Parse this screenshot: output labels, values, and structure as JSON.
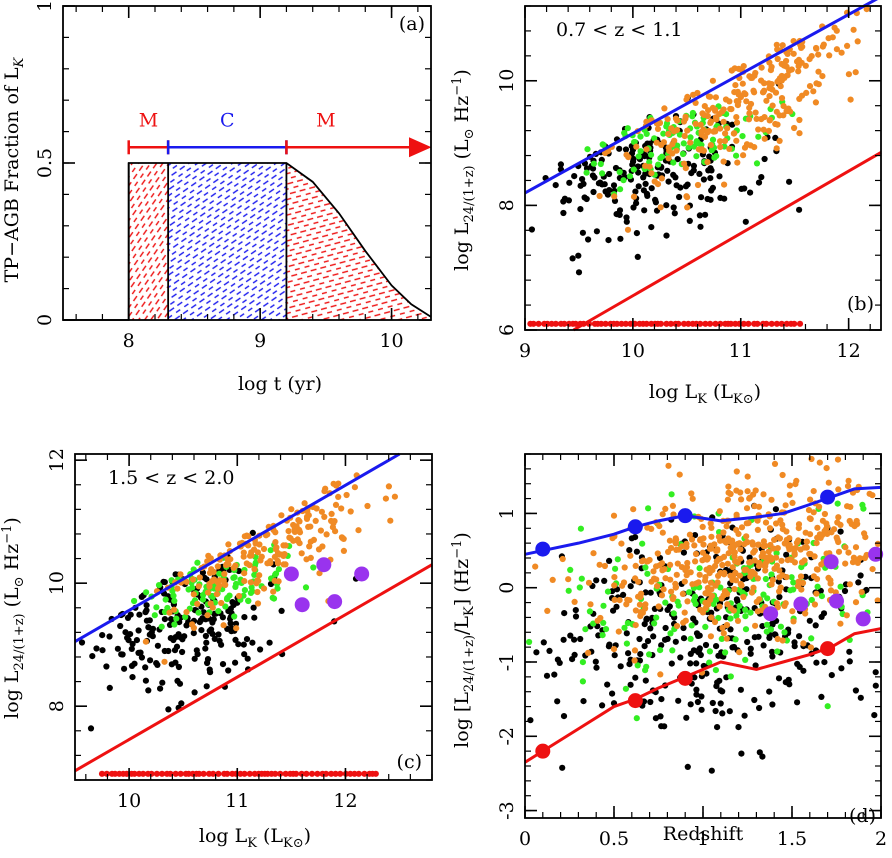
{
  "colors": {
    "axis": "#000000",
    "red": "#ee1111",
    "blue": "#1a1aee",
    "orange": "#f08a24",
    "green": "#33ee22",
    "black": "#000000",
    "purple": "#9933ee"
  },
  "chart_data": [
    {
      "id": "a",
      "type": "area",
      "panel_label": "(a)",
      "xlabel": "log t (yr)",
      "ylabel": "TP-AGB Fraction of L_K",
      "xlim": [
        7.5,
        10.3
      ],
      "ylim": [
        0,
        1
      ],
      "xticks": [
        "8",
        "9",
        "10"
      ],
      "xtick_values": [
        8,
        9,
        10
      ],
      "yticks": [
        "0",
        "0.5",
        "1"
      ],
      "ytick_values": [
        0,
        0.5,
        1
      ],
      "curve": {
        "x": [
          7.5,
          8.0,
          8.0,
          9.2,
          9.4,
          9.6,
          9.8,
          10.0,
          10.15,
          10.3
        ],
        "y": [
          0,
          0,
          0.5,
          0.5,
          0.44,
          0.34,
          0.22,
          0.11,
          0.05,
          0.01
        ]
      },
      "regions": [
        {
          "name": "M",
          "x_start": 8.0,
          "x_end": 8.3,
          "fill": "red-hatch"
        },
        {
          "name": "C",
          "x_start": 8.3,
          "x_end": 9.2,
          "fill": "blue-hatch"
        },
        {
          "name": "M",
          "x_start": 9.2,
          "x_end": 10.3,
          "fill": "red-hatch"
        }
      ],
      "bracket_labels": [
        "M",
        "C",
        "M"
      ]
    },
    {
      "id": "b",
      "type": "scatter",
      "panel_label": "(b)",
      "annotation": "0.7 < z < 1.1",
      "xlabel": "log L_K (L_K⊙)",
      "ylabel": "log L_24/(1+z) (L⊙ Hz^-1)",
      "xlim": [
        9,
        12.3
      ],
      "ylim": [
        6,
        11.2
      ],
      "xticks": [
        "9",
        "10",
        "11",
        "12"
      ],
      "xtick_values": [
        9,
        10,
        11,
        12
      ],
      "yticks": [
        "6",
        "8",
        "10"
      ],
      "ytick_values": [
        6,
        8,
        10
      ],
      "lines": [
        {
          "name": "upper",
          "color": "blue",
          "x": [
            9,
            12.3
          ],
          "y": [
            8.2,
            11.35
          ]
        },
        {
          "name": "lower",
          "color": "red",
          "x": [
            9.45,
            12.3
          ],
          "y": [
            6.0,
            8.85
          ]
        }
      ],
      "upper_limit_row": {
        "y": 6.1,
        "x_from": 9.05,
        "x_to": 11.55
      },
      "series": [
        {
          "name": "orange",
          "color": "orange",
          "center": [
            11.0,
            9.75
          ],
          "spread": [
            0.55,
            0.55
          ],
          "slope": 0.85,
          "count": 330,
          "seed": 11
        },
        {
          "name": "green",
          "color": "green",
          "center": [
            10.5,
            9.1
          ],
          "spread": [
            0.45,
            0.28
          ],
          "slope": 0.3,
          "count": 110,
          "seed": 21
        },
        {
          "name": "black",
          "color": "black",
          "center": [
            10.1,
            8.55
          ],
          "spread": [
            0.55,
            0.5
          ],
          "slope": 0.2,
          "count": 230,
          "seed": 31
        }
      ]
    },
    {
      "id": "c",
      "type": "scatter",
      "panel_label": "(c)",
      "annotation": "1.5 < z < 2.0",
      "xlabel": "log L_K (L_K⊙)",
      "ylabel": "log L_24/(1+z) (L⊙ Hz^-1)",
      "xlim": [
        9.5,
        12.8
      ],
      "ylim": [
        6.8,
        12.1
      ],
      "xticks": [
        "10",
        "11",
        "12"
      ],
      "xtick_values": [
        10,
        11,
        12
      ],
      "yticks": [
        "8",
        "10",
        "12"
      ],
      "ytick_values": [
        8,
        10,
        12
      ],
      "lines": [
        {
          "name": "upper",
          "color": "blue",
          "x": [
            9.5,
            12.5
          ],
          "y": [
            9.05,
            12.1
          ]
        },
        {
          "name": "lower",
          "color": "red",
          "x": [
            9.5,
            12.8
          ],
          "y": [
            6.95,
            10.3
          ]
        }
      ],
      "upper_limit_row": {
        "y": 6.9,
        "x_from": 9.75,
        "x_to": 12.3
      },
      "big_points": {
        "color": "purple",
        "x": [
          11.5,
          11.6,
          11.8,
          11.9,
          12.15
        ],
        "y": [
          10.15,
          9.65,
          10.3,
          9.7,
          10.15
        ]
      },
      "series": [
        {
          "name": "orange",
          "color": "orange",
          "center": [
            11.25,
            10.6
          ],
          "spread": [
            0.45,
            0.45
          ],
          "slope": 0.85,
          "count": 260,
          "seed": 41
        },
        {
          "name": "green",
          "color": "green",
          "center": [
            10.8,
            9.95
          ],
          "spread": [
            0.35,
            0.22
          ],
          "slope": 0.4,
          "count": 100,
          "seed": 51
        },
        {
          "name": "black",
          "color": "black",
          "center": [
            10.45,
            9.35
          ],
          "spread": [
            0.5,
            0.55
          ],
          "slope": 0.15,
          "count": 240,
          "seed": 61
        }
      ]
    },
    {
      "id": "d",
      "type": "scatter",
      "panel_label": "(d)",
      "xlabel": "Redshift",
      "ylabel": "log [L_24/(1+z)/L_K] (Hz^-1)",
      "xlim": [
        0,
        2
      ],
      "ylim": [
        -3.1,
        1.8
      ],
      "xticks": [
        "0",
        "0.5",
        "1",
        "1.5",
        "2"
      ],
      "xtick_values": [
        0,
        0.5,
        1,
        1.5,
        2
      ],
      "yticks": [
        "-3",
        "-2",
        "-1",
        "0",
        "1"
      ],
      "ytick_values": [
        -3,
        -2,
        -1,
        0,
        1
      ],
      "curves": [
        {
          "name": "upper",
          "color": "blue",
          "x": [
            0,
            0.1,
            0.3,
            0.5,
            0.62,
            0.75,
            0.9,
            1.1,
            1.3,
            1.45,
            1.6,
            1.72,
            1.85,
            2.0
          ],
          "y": [
            0.45,
            0.5,
            0.6,
            0.72,
            0.82,
            0.9,
            0.97,
            0.9,
            0.95,
            1.0,
            1.12,
            1.22,
            1.33,
            1.35
          ]
        },
        {
          "name": "lower",
          "color": "red",
          "x": [
            0,
            0.1,
            0.3,
            0.5,
            0.62,
            0.75,
            0.9,
            1.1,
            1.3,
            1.45,
            1.6,
            1.72,
            1.85,
            2.0
          ],
          "y": [
            -2.35,
            -2.2,
            -1.9,
            -1.6,
            -1.5,
            -1.35,
            -1.2,
            -1.0,
            -1.1,
            -1.0,
            -0.9,
            -0.8,
            -0.62,
            -0.55
          ]
        }
      ],
      "big_points": [
        {
          "name": "blue",
          "color": "blue",
          "x": [
            0.1,
            0.62,
            0.9,
            1.7
          ],
          "y": [
            0.52,
            0.82,
            0.97,
            1.22
          ]
        },
        {
          "name": "red",
          "color": "red",
          "x": [
            0.1,
            0.62,
            0.9,
            1.7
          ],
          "y": [
            -2.2,
            -1.52,
            -1.22,
            -0.82
          ]
        },
        {
          "name": "purple",
          "color": "purple",
          "x": [
            1.38,
            1.55,
            1.72,
            1.75,
            1.9,
            1.97
          ],
          "y": [
            -0.35,
            -0.22,
            0.35,
            -0.18,
            -0.42,
            0.45
          ]
        }
      ],
      "series": [
        {
          "name": "orange",
          "color": "orange",
          "center": [
            1.25,
            0.45
          ],
          "spread": [
            0.45,
            0.5
          ],
          "slope": 0.4,
          "count": 520,
          "seed": 71
        },
        {
          "name": "green",
          "color": "green",
          "center": [
            1.15,
            -0.15
          ],
          "spread": [
            0.45,
            0.55
          ],
          "slope": 0.3,
          "count": 180,
          "seed": 81
        },
        {
          "name": "black",
          "color": "black",
          "center": [
            1.05,
            -0.55
          ],
          "spread": [
            0.5,
            0.75
          ],
          "slope": 0.3,
          "count": 360,
          "seed": 91
        }
      ]
    }
  ]
}
